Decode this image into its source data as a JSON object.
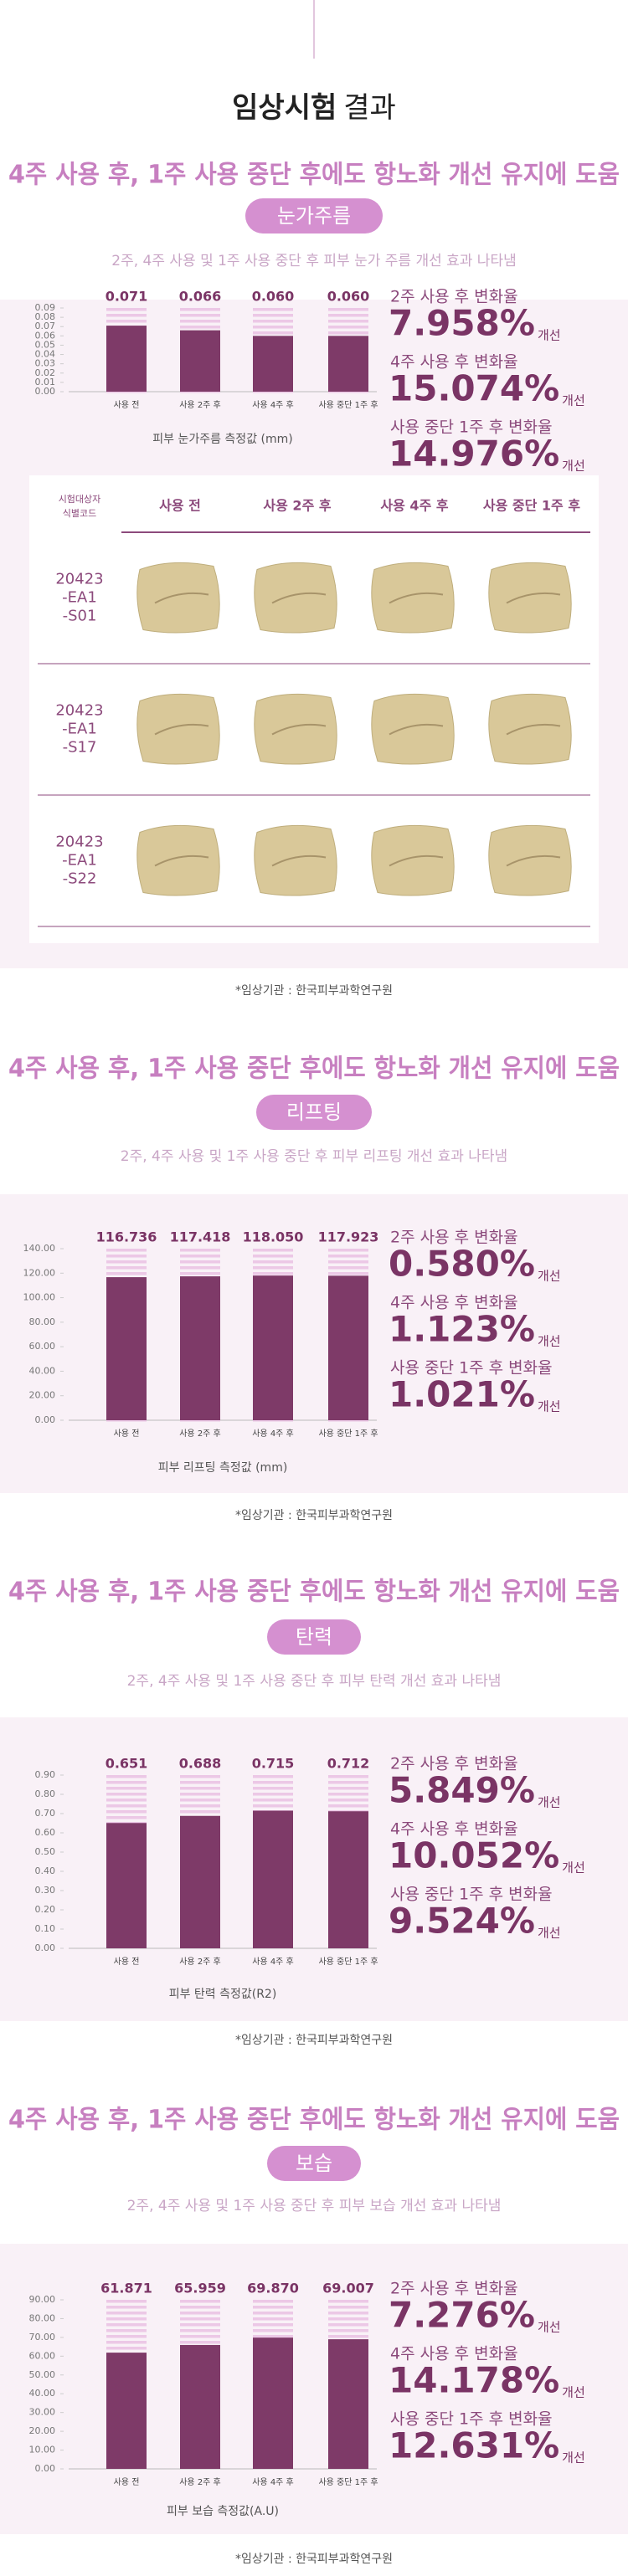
{
  "title": {
    "bold": "임상시험",
    "regular": "결과"
  },
  "sections": [
    {
      "headline": "4주 사용 후, 1주 사용 중단 후에도 항노화 개선 유지에 도움",
      "badge": "눈가주름",
      "subtitle": "2주, 4주 사용 및 1주 사용 중단 후 피부 눈가 주름 개선 효과 나타냄",
      "changes": [
        {
          "label": "2주 사용 후 변화율",
          "value": "7.958%",
          "suffix": "개선"
        },
        {
          "label": "4주 사용 후 변화율",
          "value": "15.074%",
          "suffix": "개선"
        },
        {
          "label": "사용 중단 1주 후 변화율",
          "value": "14.976%",
          "suffix": "개선"
        }
      ],
      "source": "*임상기관 : 한국피부과학연구원"
    },
    {
      "headline": "4주 사용 후, 1주 사용 중단 후에도 항노화 개선 유지에 도움",
      "badge": "리프팅",
      "subtitle": "2주, 4주 사용 및 1주 사용 중단 후 피부 리프팅 개선 효과 나타냄",
      "changes": [
        {
          "label": "2주 사용 후 변화율",
          "value": "0.580%",
          "suffix": "개선"
        },
        {
          "label": "4주 사용 후 변화율",
          "value": "1.123%",
          "suffix": "개선"
        },
        {
          "label": "사용 중단 1주 후 변화율",
          "value": "1.021%",
          "suffix": "개선"
        }
      ],
      "source": "*임상기관 : 한국피부과학연구원"
    },
    {
      "headline": "4주 사용 후, 1주 사용 중단 후에도 항노화 개선 유지에 도움",
      "badge": "탄력",
      "subtitle": "2주, 4주 사용 및 1주 사용 중단 후 피부 탄력 개선 효과 나타냄",
      "changes": [
        {
          "label": "2주 사용 후 변화율",
          "value": "5.849%",
          "suffix": "개선"
        },
        {
          "label": "4주 사용 후 변화율",
          "value": "10.052%",
          "suffix": "개선"
        },
        {
          "label": "사용 중단 1주 후 변화율",
          "value": "9.524%",
          "suffix": "개선"
        }
      ],
      "source": "*임상기관 : 한국피부과학연구원"
    },
    {
      "headline": "4주 사용 후, 1주 사용 중단 후에도 항노화 개선 유지에 도움",
      "badge": "보습",
      "subtitle": "2주, 4주 사용 및 1주 사용 중단 후 피부 보습 개선 효과 나타냄",
      "changes": [
        {
          "label": "2주 사용 후 변화율",
          "value": "7.276%",
          "suffix": "개선"
        },
        {
          "label": "4주 사용 후 변화율",
          "value": "14.178%",
          "suffix": "개선"
        },
        {
          "label": "사용 중단 1주 후 변화율",
          "value": "12.631%",
          "suffix": "개선"
        }
      ],
      "source": "*임상기관 : 한국피부과학연구원"
    }
  ],
  "photo_table": {
    "corner": [
      "시험대상자",
      "식별코드"
    ],
    "columns": [
      "사용 전",
      "사용 2주 후",
      "사용 4주 후",
      "사용 중단 1주 후"
    ],
    "rows": [
      [
        "20423",
        "-EA1",
        "-S01"
      ],
      [
        "20423",
        "-EA1",
        "-S17"
      ],
      [
        "20423",
        "-EA1",
        "-S22"
      ]
    ]
  },
  "chart_data": [
    {
      "type": "bar",
      "x_label": "피부 눈가주름 측정값 (mm)",
      "color": "#7e3a68",
      "stripe_color": "#ecc8e6",
      "categories": [
        "사용 전",
        "사용 2주 후",
        "사용 4주 후",
        "사용 중단 1주 후"
      ],
      "values": [
        0.071,
        0.066,
        0.06,
        0.06
      ],
      "value_labels": [
        "0.071",
        "0.066",
        "0.060",
        "0.060"
      ],
      "ylim": [
        0,
        0.09
      ],
      "yticks": [
        {
          "value": 0,
          "label": "0.00"
        },
        {
          "value": 0.01,
          "label": "0.01"
        },
        {
          "value": 0.02,
          "label": "0.02"
        },
        {
          "value": 0.03,
          "label": "0.03"
        },
        {
          "value": 0.04,
          "label": "0.04"
        },
        {
          "value": 0.05,
          "label": "0.05"
        },
        {
          "value": 0.06,
          "label": "0.06"
        },
        {
          "value": 0.07,
          "label": "0.07"
        },
        {
          "value": 0.08,
          "label": "0.08"
        },
        {
          "value": 0.09,
          "label": "0.09"
        }
      ]
    },
    {
      "type": "bar",
      "x_label": "피부 리프팅 측정값 (mm)",
      "color": "#7e3a68",
      "stripe_color": "#ecc8e6",
      "categories": [
        "사용 전",
        "사용 2주 후",
        "사용 4주 후",
        "사용 중단 1주 후"
      ],
      "values": [
        116.736,
        117.418,
        118.05,
        117.923
      ],
      "value_labels": [
        "116.736",
        "117.418",
        "118.050",
        "117.923"
      ],
      "ylim": [
        0,
        140
      ],
      "yticks": [
        {
          "value": 0,
          "label": "0.00"
        },
        {
          "value": 20,
          "label": "20.00"
        },
        {
          "value": 40,
          "label": "40.00"
        },
        {
          "value": 60,
          "label": "60.00"
        },
        {
          "value": 80,
          "label": "80.00"
        },
        {
          "value": 100,
          "label": "100.00"
        },
        {
          "value": 120,
          "label": "120.00"
        },
        {
          "value": 140,
          "label": "140.00"
        }
      ]
    },
    {
      "type": "bar",
      "x_label": "피부 탄력 측정값(R2)",
      "color": "#7e3a68",
      "stripe_color": "#ecc8e6",
      "categories": [
        "사용 전",
        "사용 2주 후",
        "사용 4주 후",
        "사용 중단 1주 후"
      ],
      "values": [
        0.651,
        0.688,
        0.715,
        0.712
      ],
      "value_labels": [
        "0.651",
        "0.688",
        "0.715",
        "0.712"
      ],
      "ylim": [
        0,
        0.9
      ],
      "yticks": [
        {
          "value": 0,
          "label": "0.00"
        },
        {
          "value": 0.1,
          "label": "0.10"
        },
        {
          "value": 0.2,
          "label": "0.20"
        },
        {
          "value": 0.3,
          "label": "0.30"
        },
        {
          "value": 0.4,
          "label": "0.40"
        },
        {
          "value": 0.5,
          "label": "0.50"
        },
        {
          "value": 0.6,
          "label": "0.60"
        },
        {
          "value": 0.7,
          "label": "0.70"
        },
        {
          "value": 0.8,
          "label": "0.80"
        },
        {
          "value": 0.9,
          "label": "0.90"
        }
      ]
    },
    {
      "type": "bar",
      "x_label": "피부 보습 측정값(A.U)",
      "color": "#7e3a68",
      "stripe_color": "#ecc8e6",
      "categories": [
        "사용 전",
        "사용 2주 후",
        "사용 4주 후",
        "사용 중단 1주 후"
      ],
      "values": [
        61.871,
        65.959,
        69.87,
        69.007
      ],
      "value_labels": [
        "61.871",
        "65.959",
        "69.870",
        "69.007"
      ],
      "ylim": [
        0,
        90
      ],
      "yticks": [
        {
          "value": 0,
          "label": "0.00"
        },
        {
          "value": 10,
          "label": "10.00"
        },
        {
          "value": 20,
          "label": "20.00"
        },
        {
          "value": 30,
          "label": "30.00"
        },
        {
          "value": 40,
          "label": "40.00"
        },
        {
          "value": 50,
          "label": "50.00"
        },
        {
          "value": 60,
          "label": "60.00"
        },
        {
          "value": 70,
          "label": "70.00"
        },
        {
          "value": 80,
          "label": "80.00"
        },
        {
          "value": 90,
          "label": "90.00"
        }
      ]
    }
  ]
}
